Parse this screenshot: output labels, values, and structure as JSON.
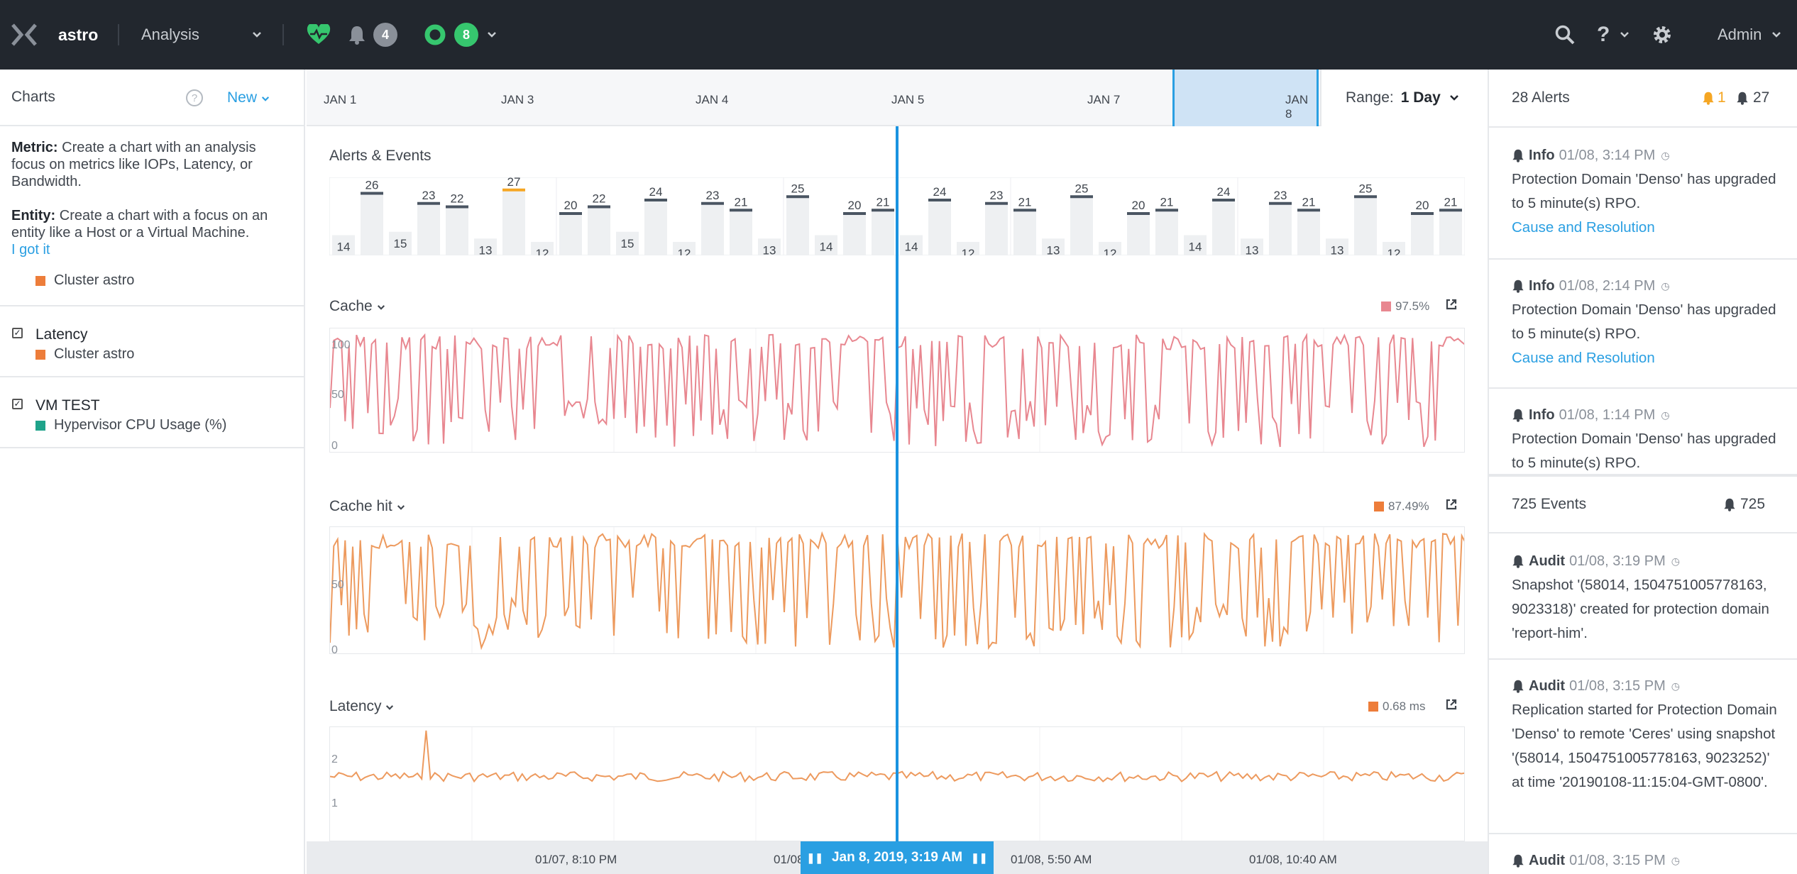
{
  "topbar": {
    "cluster_name": "astro",
    "menu": "Analysis",
    "alerts_count": "4",
    "tasks_count": "8",
    "user": "Admin"
  },
  "left_panel": {
    "title": "Charts",
    "help": "?",
    "new_label": "New",
    "metric_label": "Metric:",
    "metric_text": "Create a chart with an analysis focus on metrics like IOPs, Latency, or Bandwidth.",
    "entity_label": "Entity:",
    "entity_text": "Create a chart with a focus on an entity like a Host or a Virtual Machine.",
    "got_it": "I got it",
    "items": [
      {
        "name": "",
        "entity": "Cluster astro",
        "color": "#ed7d3a"
      },
      {
        "name": "Latency",
        "entity": "Cluster astro",
        "color": "#ed7d3a"
      },
      {
        "name": "VM TEST",
        "entity": "Hypervisor CPU Usage (%)",
        "color": "#1fa38a"
      }
    ]
  },
  "timeline": {
    "labels": [
      "JAN 1",
      "JAN 3",
      "JAN 4",
      "JAN 5",
      "JAN 7",
      "JAN 8"
    ],
    "range_label": "Range:",
    "range_value": "1 Day"
  },
  "alerts_events": {
    "title": "Alerts & Events",
    "values": [
      14,
      26,
      15,
      23,
      22,
      13,
      27,
      12,
      20,
      22,
      15,
      24,
      12,
      23,
      21,
      13,
      25,
      14,
      20,
      21,
      14,
      24,
      12,
      23,
      21,
      13,
      25,
      12,
      20,
      21,
      14,
      24,
      13,
      23,
      21,
      13,
      25,
      12,
      20,
      21
    ]
  },
  "charts": [
    {
      "title": "Cache",
      "legend": "97.5%",
      "color": "#e88790",
      "yticks": [
        "100",
        "50",
        "0"
      ]
    },
    {
      "title": "Cache hit",
      "legend": "87.49%",
      "color": "#ed9a5e",
      "yticks": [
        "50",
        "0"
      ]
    },
    {
      "title": "Latency",
      "legend": "0.68 ms",
      "color": "#ed9a5e",
      "yticks": [
        "2",
        "1"
      ]
    }
  ],
  "bottom": {
    "labels": [
      "01/07, 8:10 PM",
      "01/08",
      "01/08, 5:50 AM",
      "01/08, 10:40 AM"
    ],
    "cursor": "Jan 8, 2019, 3:19 AM"
  },
  "right_panel": {
    "alerts_title": "28 Alerts",
    "alerts_warn": "1",
    "alerts_info": "27",
    "alerts": [
      {
        "type": "Info",
        "time": "01/08, 3:14 PM",
        "text": "Protection Domain 'Denso' has upgraded to 5 minute(s) RPO.",
        "link": "Cause and Resolution"
      },
      {
        "type": "Info",
        "time": "01/08, 2:14 PM",
        "text": "Protection Domain 'Denso' has upgraded to 5 minute(s) RPO.",
        "link": "Cause and Resolution"
      },
      {
        "type": "Info",
        "time": "01/08, 1:14 PM",
        "text": "Protection Domain 'Denso' has upgraded to 5 minute(s) RPO.",
        "link": ""
      }
    ],
    "events_title": "725 Events",
    "events_count": "725",
    "events": [
      {
        "type": "Audit",
        "time": "01/08, 3:19 PM",
        "text": "Snapshot '(58014, 1504751005778163, 9023318)' created for protection domain 'report-him'."
      },
      {
        "type": "Audit",
        "time": "01/08, 3:15 PM",
        "text": "Replication started for Protection Domain 'Denso' to remote 'Ceres' using snapshot '(58014, 1504751005778163, 9023252)' at time '20190108-11:15:04-GMT-0800'."
      },
      {
        "type": "Audit",
        "time": "01/08, 3:15 PM",
        "text": ""
      }
    ]
  }
}
